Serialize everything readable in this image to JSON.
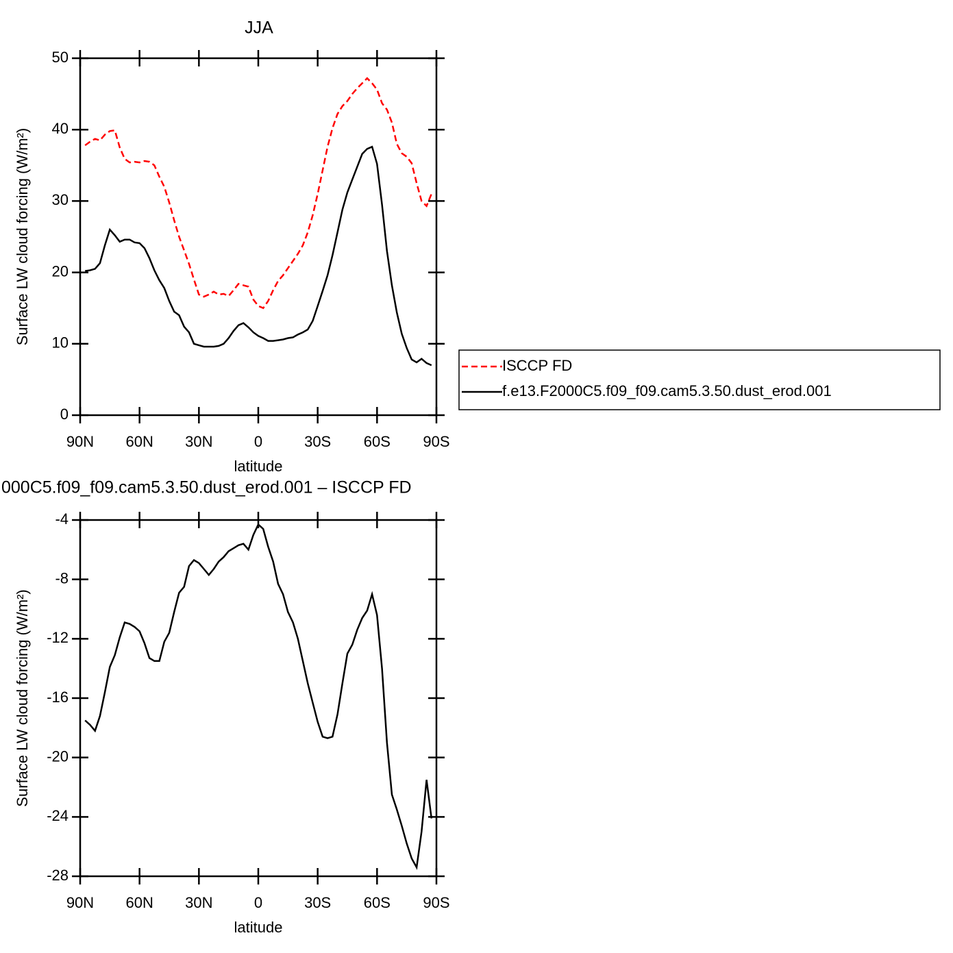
{
  "chart_data": [
    {
      "type": "line",
      "title": "JJA",
      "xlabel": "latitude",
      "ylabel": "Surface LW cloud forcing (W/m²)",
      "x": [
        87.5,
        85,
        82.5,
        80,
        77.5,
        75,
        72.5,
        70,
        67.5,
        65,
        62.5,
        60,
        57.5,
        55,
        52.5,
        50,
        47.5,
        45,
        42.5,
        40,
        37.5,
        35,
        32.5,
        30,
        27.5,
        25,
        22.5,
        20,
        17.5,
        15,
        12.5,
        10,
        7.5,
        5,
        2.5,
        0,
        -2.5,
        -5,
        -7.5,
        -10,
        -12.5,
        -15,
        -17.5,
        -20,
        -22.5,
        -25,
        -27.5,
        -30,
        -32.5,
        -35,
        -37.5,
        -40,
        -42.5,
        -45,
        -47.5,
        -50,
        -52.5,
        -55,
        -57.5,
        -60,
        -62.5,
        -65,
        -67.5,
        -70,
        -72.5,
        -75,
        -77.5,
        -80,
        -82.5,
        -85,
        -87.5
      ],
      "series": [
        {
          "name": "ISCCP FD",
          "color": "#ff0000",
          "line_style": "dashed",
          "values": [
            37.8,
            38.3,
            38.7,
            38.5,
            39.3,
            39.8,
            39.9,
            37.5,
            35.9,
            35.4,
            35.5,
            35.4,
            35.6,
            35.5,
            35.0,
            33.4,
            32.0,
            29.8,
            27.3,
            25.0,
            23.1,
            21.2,
            19.0,
            16.9,
            16.6,
            16.9,
            17.3,
            16.9,
            17.0,
            16.7,
            17.5,
            18.4,
            18.2,
            18.0,
            16.2,
            15.3,
            15.0,
            16.0,
            17.5,
            18.8,
            19.6,
            20.6,
            21.6,
            22.6,
            23.8,
            25.6,
            28.0,
            31.0,
            34.3,
            37.6,
            40.2,
            42.2,
            43.3,
            44.0,
            45.0,
            45.8,
            46.5,
            47.2,
            46.5,
            45.6,
            43.7,
            42.8,
            41.0,
            38.0,
            36.7,
            36.2,
            35.3,
            32.5,
            30.0,
            29.3,
            31.0
          ]
        },
        {
          "name": "f.e13.F2000C5.f09_f09.cam5.3.50.dust_erod.001",
          "color": "#000000",
          "line_style": "solid",
          "values": [
            20.2,
            20.3,
            20.5,
            21.3,
            23.8,
            26.0,
            25.2,
            24.3,
            24.6,
            24.6,
            24.2,
            24.1,
            23.4,
            22.0,
            20.3,
            18.9,
            17.8,
            16.0,
            14.5,
            14.0,
            12.4,
            11.6,
            10.0,
            9.8,
            9.6,
            9.6,
            9.6,
            9.7,
            10.0,
            10.8,
            11.8,
            12.6,
            12.9,
            12.3,
            11.6,
            11.1,
            10.8,
            10.4,
            10.4,
            10.5,
            10.6,
            10.8,
            10.9,
            11.3,
            11.6,
            12.0,
            13.2,
            15.3,
            17.4,
            19.6,
            22.4,
            25.6,
            28.8,
            31.2,
            33.0,
            34.8,
            36.6,
            37.3,
            37.6,
            35.2,
            29.5,
            23.0,
            18.2,
            14.4,
            11.4,
            9.4,
            7.8,
            7.4,
            7.9,
            7.3,
            7.0
          ]
        }
      ],
      "xlim": [
        90,
        -90
      ],
      "xticks": [
        {
          "value": 90,
          "label": "90N"
        },
        {
          "value": 60,
          "label": "60N"
        },
        {
          "value": 30,
          "label": "30N"
        },
        0,
        {
          "value": -30,
          "label": "30S"
        },
        {
          "value": -60,
          "label": "60S"
        },
        {
          "value": -90,
          "label": "90S"
        }
      ],
      "ylim": [
        0,
        50
      ],
      "yticks": [
        0,
        10,
        20,
        30,
        40,
        50
      ],
      "legend": "right"
    },
    {
      "type": "line",
      "title": "000C5.f09_f09.cam5.3.50.dust_erod.001 – ISCCP FD",
      "xlabel": "latitude",
      "ylabel": "Surface LW cloud forcing (W/m²)",
      "x": [
        87.5,
        85,
        82.5,
        80,
        77.5,
        75,
        72.5,
        70,
        67.5,
        65,
        62.5,
        60,
        57.5,
        55,
        52.5,
        50,
        47.5,
        45,
        42.5,
        40,
        37.5,
        35,
        32.5,
        30,
        27.5,
        25,
        22.5,
        20,
        17.5,
        15,
        12.5,
        10,
        7.5,
        5,
        2.5,
        0,
        -2.5,
        -5,
        -7.5,
        -10,
        -12.5,
        -15,
        -17.5,
        -20,
        -22.5,
        -25,
        -27.5,
        -30,
        -32.5,
        -35,
        -37.5,
        -40,
        -42.5,
        -45,
        -47.5,
        -50,
        -52.5,
        -55,
        -57.5,
        -60,
        -62.5,
        -65,
        -67.5,
        -70,
        -72.5,
        -75,
        -77.5,
        -80,
        -82.5,
        -85,
        -87.5
      ],
      "series": [
        {
          "color": "#000000",
          "line_style": "solid",
          "values": [
            -17.5,
            -17.8,
            -18.2,
            -17.2,
            -15.6,
            -13.9,
            -13.1,
            -11.9,
            -10.9,
            -11.0,
            -11.2,
            -11.5,
            -12.3,
            -13.3,
            -13.5,
            -13.5,
            -12.2,
            -11.6,
            -10.2,
            -8.9,
            -8.5,
            -7.1,
            -6.7,
            -6.9,
            -7.3,
            -7.7,
            -7.3,
            -6.8,
            -6.5,
            -6.1,
            -5.9,
            -5.7,
            -5.6,
            -6.0,
            -5.0,
            -4.3,
            -4.6,
            -5.8,
            -6.8,
            -8.3,
            -9.0,
            -10.2,
            -10.9,
            -12.0,
            -13.5,
            -15.0,
            -16.3,
            -17.6,
            -18.6,
            -18.7,
            -18.6,
            -17.1,
            -15.0,
            -13.0,
            -12.4,
            -11.4,
            -10.6,
            -10.1,
            -9.0,
            -10.4,
            -14.0,
            -19.0,
            -22.5,
            -23.5,
            -24.6,
            -25.8,
            -26.8,
            -27.4,
            -25.0,
            -21.5,
            -24.1
          ]
        }
      ],
      "xlim": [
        90,
        -90
      ],
      "xticks": [
        {
          "value": 90,
          "label": "90N"
        },
        {
          "value": 60,
          "label": "60N"
        },
        {
          "value": 30,
          "label": "30N"
        },
        0,
        {
          "value": -30,
          "label": "30S"
        },
        {
          "value": -60,
          "label": "60S"
        },
        {
          "value": -90,
          "label": "90S"
        }
      ],
      "ylim": [
        -28,
        -4
      ],
      "yticks": [
        -28,
        -24,
        -20,
        -16,
        -12,
        -8,
        -4
      ]
    }
  ]
}
